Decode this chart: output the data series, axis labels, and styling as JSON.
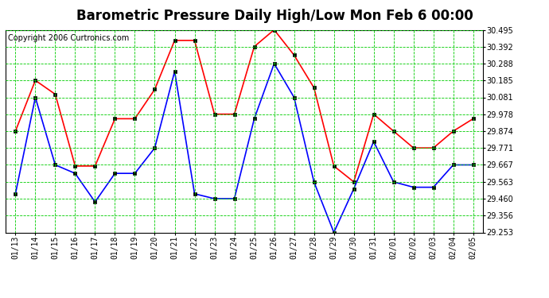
{
  "title": "Barometric Pressure Daily High/Low Mon Feb 6 00:00",
  "copyright": "Copyright 2006 Curtronics.com",
  "labels": [
    "01/13",
    "01/14",
    "01/15",
    "01/16",
    "01/17",
    "01/18",
    "01/19",
    "01/20",
    "01/21",
    "01/22",
    "01/23",
    "01/24",
    "01/25",
    "01/26",
    "01/27",
    "01/28",
    "01/29",
    "01/30",
    "01/31",
    "02/01",
    "02/02",
    "02/03",
    "02/04",
    "02/05"
  ],
  "high_values": [
    29.874,
    30.185,
    30.1,
    29.66,
    29.66,
    29.95,
    29.95,
    30.13,
    30.43,
    30.43,
    29.978,
    29.978,
    30.392,
    30.495,
    30.34,
    30.14,
    29.66,
    29.563,
    29.978,
    29.874,
    29.771,
    29.771,
    29.874,
    29.95
  ],
  "low_values": [
    29.49,
    30.081,
    29.667,
    29.615,
    29.44,
    29.615,
    29.615,
    29.771,
    30.24,
    29.49,
    29.46,
    29.46,
    29.95,
    30.288,
    30.081,
    29.563,
    29.253,
    29.52,
    29.81,
    29.563,
    29.53,
    29.53,
    29.667,
    29.667
  ],
  "high_color": "#ff0000",
  "low_color": "#0000ff",
  "bg_color": "#ffffff",
  "plot_bg_color": "#ffffff",
  "grid_color": "#00cc00",
  "title_fontsize": 12,
  "copyright_fontsize": 7,
  "tick_fontsize": 7,
  "ylim_min": 29.253,
  "ylim_max": 30.495,
  "yticks": [
    29.253,
    29.356,
    29.46,
    29.563,
    29.667,
    29.771,
    29.874,
    29.978,
    30.081,
    30.185,
    30.288,
    30.392,
    30.495
  ]
}
